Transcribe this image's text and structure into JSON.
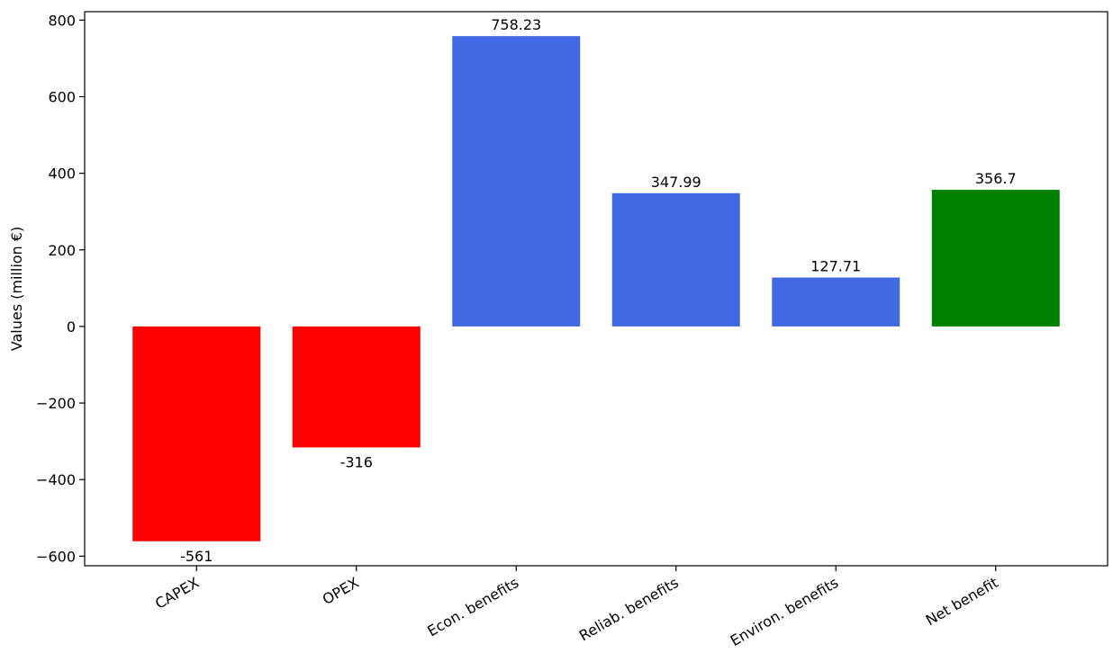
{
  "chart_data": {
    "type": "bar",
    "title": "",
    "xlabel": "",
    "ylabel": "Values (million €)",
    "categories": [
      "CAPEX",
      "OPEX",
      "Econ. benefits",
      "Reliab. benefits",
      "Environ. benefits",
      "Net benefit"
    ],
    "values": [
      -561,
      -316,
      758.23,
      347.99,
      127.71,
      356.7
    ],
    "value_labels": [
      "-561",
      "-316",
      "758.23",
      "347.99",
      "127.71",
      "356.7"
    ],
    "colors": [
      "#ff0000",
      "#ff0000",
      "#4169e1",
      "#4169e1",
      "#4169e1",
      "#008000"
    ],
    "ylim": [
      -625,
      822
    ],
    "yticks": [
      -600,
      -400,
      -200,
      0,
      200,
      400,
      600,
      800
    ],
    "ytick_labels": [
      "−600",
      "−400",
      "−200",
      "0",
      "200",
      "400",
      "600",
      "800"
    ],
    "grid": false,
    "legend": "none"
  }
}
